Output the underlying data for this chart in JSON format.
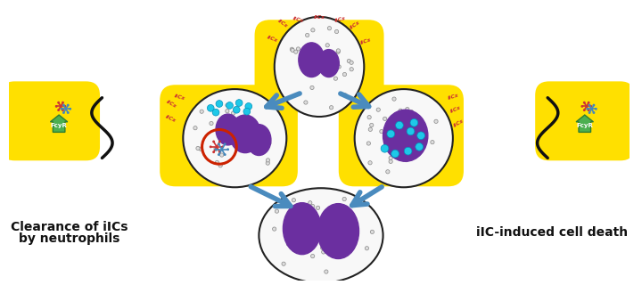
{
  "bg_color": "#ffffff",
  "nucleus_color": "#6B2FA0",
  "arrow_color": "#4A8BBE",
  "cell_fill": "#F8F8F8",
  "cell_border": "#222222",
  "cyan_color": "#1EC8E8",
  "red_ring_color": "#CC2200",
  "green_fcyr": "#4CAF50",
  "green_fcyr_dark": "#2E7D32",
  "label_left_line1": "Clearance of iICs",
  "label_left_line2": "by neutrophils",
  "label_right": "iIC-induced cell death",
  "label_fontsize": 10,
  "iic_color_red": "#CC3333",
  "iic_color_blue": "#4488BB"
}
